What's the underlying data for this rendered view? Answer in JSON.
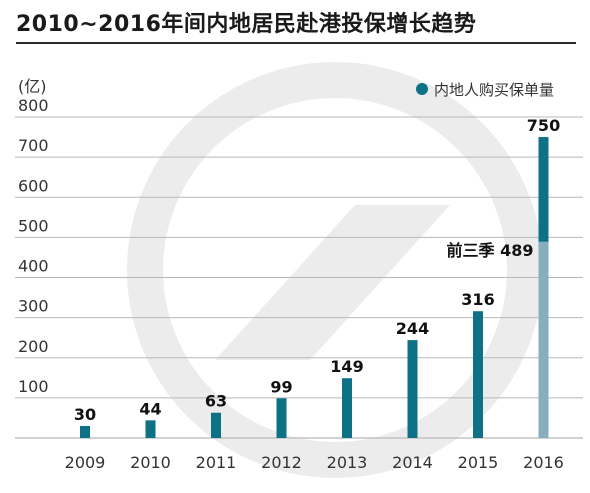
{
  "title": "2010~2016年间内地居民赴港投保增长趋势",
  "colors": {
    "bar": "#0e7186",
    "bar_partial": "#86aebe",
    "grid": "#b8b8b8",
    "watermark": "#ececec"
  },
  "chart_data": {
    "type": "bar",
    "title": "2010~2016年间内地居民赴港投保增长趋势",
    "ylabel": "(亿)",
    "xlabel": "",
    "ylim": [
      0,
      800
    ],
    "yticks": [
      100,
      200,
      300,
      400,
      500,
      600,
      700,
      800
    ],
    "categories": [
      "2009",
      "2010",
      "2011",
      "2012",
      "2013",
      "2014",
      "2015",
      "2016"
    ],
    "series": [
      {
        "name": "内地人购买保单量",
        "values": [
          30,
          44,
          63,
          99,
          149,
          244,
          316,
          750
        ],
        "labels": [
          "30",
          "44",
          "63",
          "99",
          "149",
          "244",
          "316",
          "750"
        ]
      }
    ],
    "annotations": [
      {
        "category": "2016",
        "text": "前三季 489",
        "value": 489
      }
    ],
    "legend": {
      "position": "top-right",
      "entries": [
        "内地人购买保单量"
      ]
    },
    "grid": true
  }
}
